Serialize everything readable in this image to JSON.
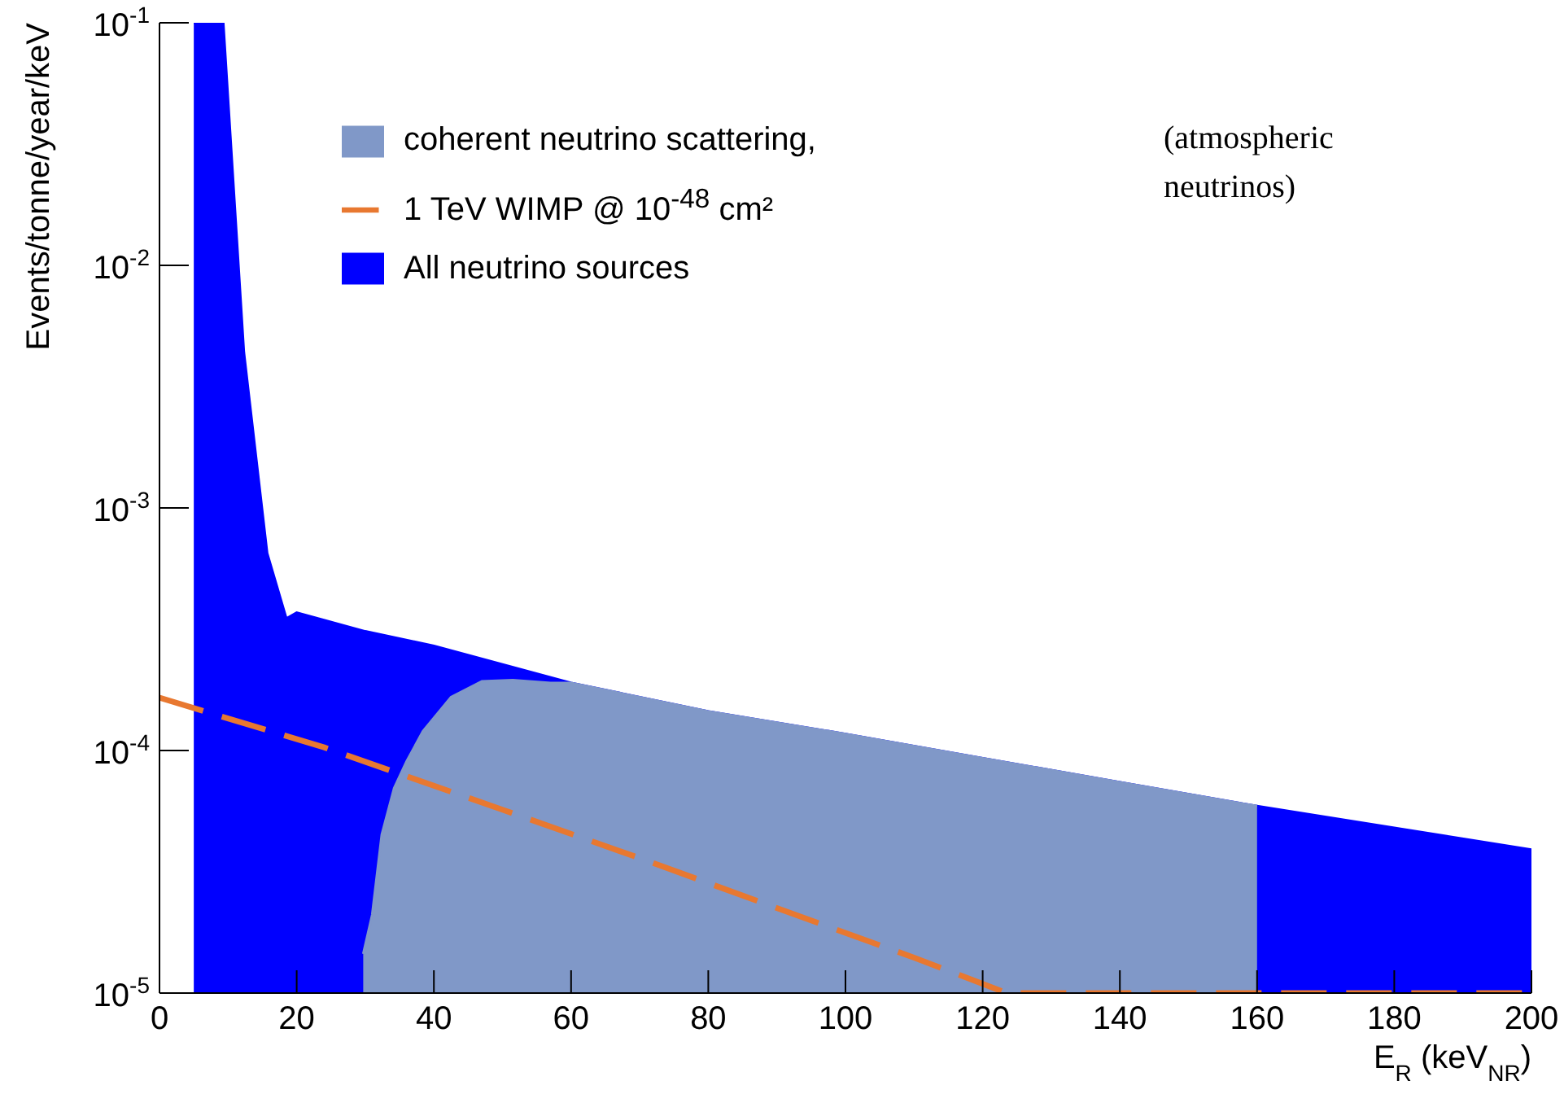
{
  "chart_data": {
    "type": "area",
    "xlabel": "E$_{R}$ (keV$_{NR}$)",
    "ylabel": "Events/tonne/year/keV",
    "log": "y",
    "legend": "top",
    "xlim": [
      0,
      200
    ],
    "xticks": [
      0,
      20,
      40,
      60,
      80,
      100,
      120,
      140,
      160,
      180,
      200
    ],
    "ylim": [
      1e-05,
      0.1
    ],
    "yticks": [
      {
        "value": 1e-05,
        "label": "10$^{-5}$"
      },
      {
        "value": 0.0001,
        "label": "10$^{-4}$"
      },
      {
        "value": 0.001,
        "label": "10$^{-3}$"
      },
      {
        "value": 0.01,
        "label": "10$^{-2}$"
      },
      {
        "value": 0.1,
        "label": "10$^{-1}$"
      }
    ],
    "annotations": [
      "(atmospheric neutrinos)"
    ],
    "series": [
      {
        "name": "All neutrino sources",
        "color": "#0000ff",
        "x": [
          5,
          9.3,
          12.3,
          15.7,
          18.5,
          20,
          30,
          40,
          60,
          80,
          100,
          120,
          140,
          160,
          180,
          200
        ],
        "values": [
          0.1,
          0.1,
          0.0044,
          0.00065,
          0.00035,
          0.00037,
          0.00031,
          0.00027,
          0.00019,
          0.000145,
          0.000117,
          9.3e-05,
          7.4e-05,
          5.9e-05,
          4.8e-05,
          3.9e-05
        ]
      },
      {
        "name": "coherent neutrino scattering,",
        "type": "area",
        "color": "#8098c8",
        "x": [
          29.7,
          31,
          32.4,
          34.2,
          36,
          38.4,
          42.5,
          47,
          51.5,
          57,
          60,
          80,
          100,
          120,
          140,
          160
        ],
        "values": [
          1.45e-05,
          2.1e-05,
          4.5e-05,
          7e-05,
          9e-05,
          0.00012,
          0.000166,
          0.000193,
          0.000195,
          0.00019,
          0.00019,
          0.000145,
          0.000117,
          9.3e-05,
          7.4e-05,
          5.9e-05
        ]
      },
      {
        "name": "1 TeV WIMP @ 10$^{-48}$ cm²",
        "type": "line",
        "line_style": "dashed",
        "color": "#e87830",
        "x": [
          0,
          24,
          50,
          70,
          97,
          110,
          123.5,
          160,
          200
        ],
        "values": [
          0.000165,
          0.000103,
          5.7e-05,
          3.6e-05,
          1.9e-05,
          1.4e-05,
          1e-05,
          1e-05,
          1e-05
        ]
      }
    ]
  }
}
